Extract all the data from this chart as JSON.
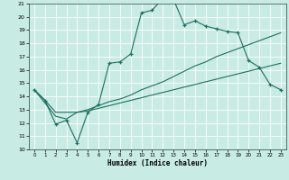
{
  "title": "",
  "xlabel": "Humidex (Indice chaleur)",
  "xlim": [
    -0.5,
    23.5
  ],
  "ylim": [
    10,
    21
  ],
  "yticks": [
    10,
    11,
    12,
    13,
    14,
    15,
    16,
    17,
    18,
    19,
    20,
    21
  ],
  "xticks": [
    0,
    1,
    2,
    3,
    4,
    5,
    6,
    7,
    8,
    9,
    10,
    11,
    12,
    13,
    14,
    15,
    16,
    17,
    18,
    19,
    20,
    21,
    22,
    23
  ],
  "background_color": "#c8ebe3",
  "grid_color": "#ffffff",
  "line_color": "#1a7060",
  "line1_x": [
    0,
    1,
    2,
    3,
    4,
    5,
    6,
    7,
    8,
    9,
    10,
    11,
    12,
    13,
    14,
    15,
    16,
    17,
    18,
    19,
    20,
    21,
    22,
    23
  ],
  "line1_y": [
    14.5,
    13.7,
    11.9,
    12.2,
    10.5,
    12.8,
    13.4,
    16.5,
    16.6,
    17.2,
    20.3,
    20.5,
    21.4,
    21.3,
    19.4,
    19.7,
    19.3,
    19.1,
    18.9,
    18.8,
    16.7,
    16.2,
    14.9,
    14.5
  ],
  "line2_x": [
    0,
    1,
    2,
    3,
    4,
    5,
    6,
    7,
    8,
    9,
    10,
    11,
    12,
    13,
    14,
    15,
    16,
    17,
    18,
    19,
    20,
    21,
    22,
    23
  ],
  "line2_y": [
    14.5,
    13.7,
    12.8,
    12.8,
    12.8,
    13.0,
    13.3,
    13.6,
    13.8,
    14.1,
    14.5,
    14.8,
    15.1,
    15.5,
    15.9,
    16.3,
    16.6,
    17.0,
    17.3,
    17.6,
    17.9,
    18.2,
    18.5,
    18.8
  ],
  "line3_x": [
    0,
    1,
    2,
    3,
    4,
    5,
    6,
    7,
    8,
    9,
    10,
    11,
    12,
    13,
    14,
    15,
    16,
    17,
    18,
    19,
    20,
    21,
    22,
    23
  ],
  "line3_y": [
    14.5,
    13.5,
    12.5,
    12.3,
    12.8,
    12.9,
    13.1,
    13.3,
    13.5,
    13.7,
    13.9,
    14.1,
    14.3,
    14.5,
    14.7,
    14.9,
    15.1,
    15.3,
    15.5,
    15.7,
    15.9,
    16.1,
    16.3,
    16.5
  ]
}
